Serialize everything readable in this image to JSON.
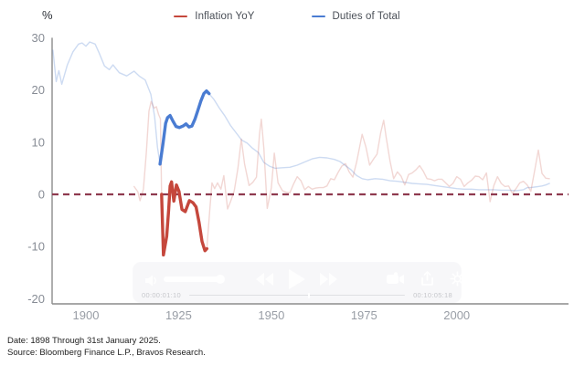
{
  "chart_data": {
    "type": "line",
    "title": "",
    "ylabel": "%",
    "xlabel": "",
    "ylim": [
      -20,
      30
    ],
    "yticks": [
      30,
      20,
      10,
      0,
      -10,
      -20
    ],
    "xticks": [
      1900,
      1925,
      1950,
      1975,
      2000
    ],
    "x_range_years": [
      1891,
      2025
    ],
    "grid": false,
    "legend_position": "top",
    "zero_line": {
      "style": "dashed",
      "value": 0,
      "color": "#8e3a4f"
    },
    "series": [
      {
        "name": "Inflation YoY",
        "color": "#c5473c",
        "faded_opacity": 0.22,
        "highlight_years": [
          1920.4,
          1932.6
        ],
        "points": [
          [
            1913,
            1.5
          ],
          [
            1914,
            0.5
          ],
          [
            1914.6,
            -1.2
          ],
          [
            1915.5,
            1.0
          ],
          [
            1916.3,
            8.0
          ],
          [
            1917,
            16.0
          ],
          [
            1917.6,
            17.8
          ],
          [
            1918.4,
            16.5
          ],
          [
            1919.0,
            16.8
          ],
          [
            1919.6,
            15.3
          ],
          [
            1920.1,
            14.5
          ],
          [
            1920.4,
            0.0
          ],
          [
            1920.9,
            -11.6
          ],
          [
            1921.8,
            -8.0
          ],
          [
            1922.3,
            -3.0
          ],
          [
            1922.7,
            1.6
          ],
          [
            1923.1,
            2.4
          ],
          [
            1923.7,
            -1.3
          ],
          [
            1924.4,
            1.8
          ],
          [
            1925.1,
            0.6
          ],
          [
            1925.9,
            -2.9
          ],
          [
            1926.8,
            -3.3
          ],
          [
            1927.9,
            -1.2
          ],
          [
            1928.9,
            -1.6
          ],
          [
            1929.7,
            -2.4
          ],
          [
            1930.5,
            -5.3
          ],
          [
            1931.3,
            -9.0
          ],
          [
            1932.1,
            -10.8
          ],
          [
            1932.6,
            -10.4
          ],
          [
            1933.4,
            -3.0
          ],
          [
            1934,
            2.2
          ],
          [
            1934.7,
            1.1
          ],
          [
            1935.5,
            2.2
          ],
          [
            1936.4,
            1.0
          ],
          [
            1937.2,
            3.6
          ],
          [
            1938.2,
            -2.8
          ],
          [
            1939,
            -1.4
          ],
          [
            1940,
            0.7
          ],
          [
            1941,
            5.0
          ],
          [
            1941.9,
            10.6
          ],
          [
            1942.8,
            5.8
          ],
          [
            1944,
            1.7
          ],
          [
            1945,
            2.3
          ],
          [
            1946,
            3.3
          ],
          [
            1946.8,
            11.5
          ],
          [
            1947.3,
            14.4
          ],
          [
            1948,
            8.8
          ],
          [
            1948.9,
            -2.7
          ],
          [
            1950,
            1.3
          ],
          [
            1950.8,
            7.9
          ],
          [
            1951.8,
            2.2
          ],
          [
            1953,
            0.7
          ],
          [
            1954,
            0.4
          ],
          [
            1955,
            0.3
          ],
          [
            1956,
            2.0
          ],
          [
            1957,
            3.4
          ],
          [
            1958,
            2.6
          ],
          [
            1959,
            0.9
          ],
          [
            1960,
            1.5
          ],
          [
            1961,
            1.0
          ],
          [
            1962,
            1.2
          ],
          [
            1963,
            1.3
          ],
          [
            1964,
            1.3
          ],
          [
            1965,
            1.6
          ],
          [
            1966,
            3.0
          ],
          [
            1967,
            2.8
          ],
          [
            1968,
            4.2
          ],
          [
            1969,
            5.4
          ],
          [
            1970,
            5.9
          ],
          [
            1971,
            4.3
          ],
          [
            1972,
            3.3
          ],
          [
            1973,
            6.2
          ],
          [
            1974.5,
            11.5
          ],
          [
            1975.5,
            9.1
          ],
          [
            1976.5,
            5.6
          ],
          [
            1977.5,
            6.7
          ],
          [
            1978.5,
            7.7
          ],
          [
            1979.5,
            11.8
          ],
          [
            1980.3,
            14.2
          ],
          [
            1981,
            10.8
          ],
          [
            1982,
            6.4
          ],
          [
            1983,
            3.0
          ],
          [
            1984,
            4.3
          ],
          [
            1985,
            3.5
          ],
          [
            1986,
            1.8
          ],
          [
            1987,
            3.8
          ],
          [
            1988,
            4.1
          ],
          [
            1989,
            4.7
          ],
          [
            1990,
            5.5
          ],
          [
            1991,
            4.4
          ],
          [
            1992,
            3.0
          ],
          [
            1993,
            2.9
          ],
          [
            1994,
            2.6
          ],
          [
            1995,
            2.9
          ],
          [
            1996,
            2.9
          ],
          [
            1997,
            2.2
          ],
          [
            1998,
            1.5
          ],
          [
            1999,
            2.1
          ],
          [
            2000,
            3.4
          ],
          [
            2001,
            2.9
          ],
          [
            2002,
            1.5
          ],
          [
            2003,
            2.2
          ],
          [
            2004,
            2.7
          ],
          [
            2005,
            3.5
          ],
          [
            2006,
            3.4
          ],
          [
            2007,
            2.8
          ],
          [
            2008,
            4.1
          ],
          [
            2009,
            -1.4
          ],
          [
            2010,
            1.7
          ],
          [
            2011,
            3.4
          ],
          [
            2012,
            2.1
          ],
          [
            2013,
            1.5
          ],
          [
            2014,
            1.6
          ],
          [
            2015,
            0.2
          ],
          [
            2016,
            1.1
          ],
          [
            2017,
            2.2
          ],
          [
            2018,
            2.5
          ],
          [
            2019,
            1.8
          ],
          [
            2020,
            0.6
          ],
          [
            2021,
            4.5
          ],
          [
            2022,
            8.5
          ],
          [
            2023,
            4.0
          ],
          [
            2024,
            3.1
          ],
          [
            2025,
            3.0
          ]
        ]
      },
      {
        "name": "Duties of Total",
        "color": "#4a7cd2",
        "faded_opacity": 0.28,
        "highlight_years": [
          1920,
          1933.2
        ],
        "points": [
          [
            1891.1,
            27.6
          ],
          [
            1892,
            21.6
          ],
          [
            1892.7,
            23.7
          ],
          [
            1893.5,
            21.1
          ],
          [
            1895,
            24.8
          ],
          [
            1896.5,
            27.3
          ],
          [
            1898,
            28.8
          ],
          [
            1899,
            29.0
          ],
          [
            1900,
            28.4
          ],
          [
            1901,
            29.2
          ],
          [
            1902.5,
            28.8
          ],
          [
            1903.5,
            27.2
          ],
          [
            1905,
            24.6
          ],
          [
            1906.3,
            23.9
          ],
          [
            1907.3,
            24.8
          ],
          [
            1909,
            23.3
          ],
          [
            1911,
            22.7
          ],
          [
            1913,
            23.6
          ],
          [
            1914.5,
            22.6
          ],
          [
            1916,
            21.9
          ],
          [
            1917.5,
            19.2
          ],
          [
            1918.5,
            15.0
          ],
          [
            1919.3,
            9.0
          ],
          [
            1920,
            5.8
          ],
          [
            1920.8,
            9.8
          ],
          [
            1921.5,
            13.6
          ],
          [
            1922,
            14.7
          ],
          [
            1922.7,
            15.1
          ],
          [
            1923.5,
            14.0
          ],
          [
            1924.3,
            13.0
          ],
          [
            1925.2,
            12.8
          ],
          [
            1926.2,
            13.1
          ],
          [
            1927,
            13.5
          ],
          [
            1927.8,
            12.9
          ],
          [
            1928.6,
            13.1
          ],
          [
            1929.4,
            14.4
          ],
          [
            1930.2,
            16.1
          ],
          [
            1931,
            17.9
          ],
          [
            1931.8,
            19.3
          ],
          [
            1932.5,
            19.8
          ],
          [
            1933.2,
            19.3
          ],
          [
            1934.5,
            18.2
          ],
          [
            1936,
            16.5
          ],
          [
            1937.5,
            15.0
          ],
          [
            1939,
            13.2
          ],
          [
            1940.5,
            11.8
          ],
          [
            1942,
            10.4
          ],
          [
            1943.5,
            9.8
          ],
          [
            1945,
            8.8
          ],
          [
            1946.5,
            8.0
          ],
          [
            1948,
            6.1
          ],
          [
            1949.5,
            5.4
          ],
          [
            1951,
            5.0
          ],
          [
            1953,
            5.1
          ],
          [
            1955,
            5.2
          ],
          [
            1957,
            5.6
          ],
          [
            1959,
            6.2
          ],
          [
            1961,
            6.8
          ],
          [
            1963,
            7.1
          ],
          [
            1965,
            7.0
          ],
          [
            1967,
            6.7
          ],
          [
            1968.5,
            6.3
          ],
          [
            1970,
            5.5
          ],
          [
            1971.5,
            4.7
          ],
          [
            1973,
            3.6
          ],
          [
            1974.5,
            3.0
          ],
          [
            1976,
            2.8
          ],
          [
            1978,
            3.0
          ],
          [
            1980,
            2.9
          ],
          [
            1982,
            2.6
          ],
          [
            1984,
            2.5
          ],
          [
            1986,
            2.3
          ],
          [
            1988,
            2.1
          ],
          [
            1990,
            2.0
          ],
          [
            1992,
            1.9
          ],
          [
            1994,
            1.7
          ],
          [
            1996,
            1.5
          ],
          [
            1998,
            1.3
          ],
          [
            2000,
            1.1
          ],
          [
            2002,
            1.0
          ],
          [
            2004,
            1.0
          ],
          [
            2006,
            0.9
          ],
          [
            2008,
            0.9
          ],
          [
            2010,
            0.9
          ],
          [
            2012,
            0.8
          ],
          [
            2014,
            0.8
          ],
          [
            2016,
            0.7
          ],
          [
            2018,
            0.9
          ],
          [
            2019,
            1.3
          ],
          [
            2020,
            1.3
          ],
          [
            2021,
            1.4
          ],
          [
            2022,
            1.5
          ],
          [
            2023,
            1.6
          ],
          [
            2024,
            1.8
          ],
          [
            2025,
            2.1
          ]
        ]
      }
    ]
  },
  "player": {
    "time_left": "00:00:01:10",
    "time_right": "00:10:05:18"
  },
  "footer": {
    "line1": "Date: 1898 Through 31st January 2025.",
    "line2": "Source: Bloomberg Finance L.P., Bravos Research."
  }
}
